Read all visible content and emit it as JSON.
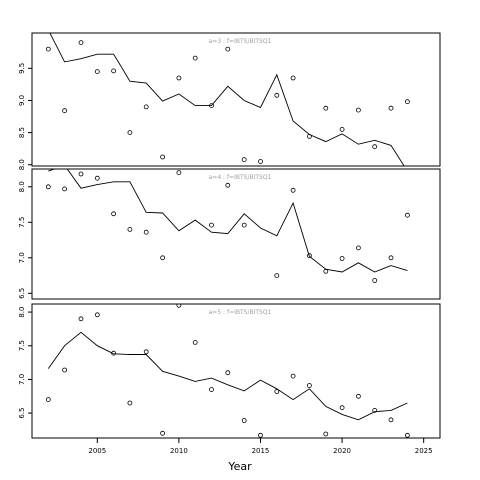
{
  "chart_data": {
    "type": "scatter",
    "xlabel": "Year",
    "x_ticks": [
      2005,
      2010,
      2015,
      2020,
      2025
    ],
    "x_range": [
      2001,
      2026
    ],
    "panels": [
      {
        "label": "a=3  :  f=IBTS/BITSQ1",
        "y_range": [
          7.98,
          10.05
        ],
        "y_ticks": [
          "8.0",
          "8.5",
          "9.0",
          "9.5"
        ],
        "points_x": [
          2002,
          2003,
          2004,
          2005,
          2006,
          2007,
          2008,
          2009,
          2010,
          2011,
          2012,
          2013,
          2014,
          2015,
          2016,
          2017,
          2018,
          2019,
          2020,
          2021,
          2022,
          2023,
          2024
        ],
        "points_y": [
          9.8,
          8.84,
          9.9,
          9.45,
          9.46,
          8.5,
          8.9,
          8.12,
          9.35,
          9.66,
          8.92,
          9.8,
          8.08,
          8.05,
          9.08,
          9.35,
          8.44,
          8.88,
          8.55,
          8.85,
          8.28,
          8.88,
          8.98
        ],
        "line_x": [
          2002,
          2003,
          2004,
          2005,
          2006,
          2007,
          2008,
          2009,
          2010,
          2011,
          2012,
          2013,
          2014,
          2015,
          2016,
          2017,
          2018,
          2019,
          2020,
          2021,
          2022,
          2023,
          2024
        ],
        "line_y": [
          10.1,
          9.6,
          9.65,
          9.72,
          9.72,
          9.3,
          9.27,
          8.99,
          9.1,
          8.92,
          8.92,
          9.22,
          9.0,
          8.89,
          9.4,
          8.68,
          8.47,
          8.36,
          8.48,
          8.32,
          8.38,
          8.3,
          7.9
        ]
      },
      {
        "label": "a=4  :  f=IBTS/BITSQ1",
        "y_range": [
          6.42,
          8.25
        ],
        "y_ticks": [
          "6.5",
          "7.0",
          "7.5",
          "8.0"
        ],
        "points_x": [
          2002,
          2003,
          2004,
          2005,
          2006,
          2007,
          2008,
          2009,
          2010,
          2011,
          2012,
          2013,
          2014,
          2015,
          2016,
          2017,
          2018,
          2019,
          2020,
          2021,
          2022,
          2023,
          2024
        ],
        "points_y": [
          8.0,
          7.97,
          8.18,
          8.12,
          7.62,
          7.4,
          7.36,
          7.0,
          8.2,
          8.3,
          7.46,
          8.02,
          7.46,
          6.38,
          6.75,
          7.95,
          7.03,
          6.81,
          6.99,
          7.14,
          6.68,
          7.0,
          7.6
        ],
        "line_x": [
          2002,
          2003,
          2004,
          2005,
          2006,
          2007,
          2008,
          2009,
          2010,
          2011,
          2012,
          2013,
          2014,
          2015,
          2016,
          2017,
          2018,
          2019,
          2020,
          2021,
          2022,
          2023,
          2024
        ],
        "line_y": [
          8.22,
          8.3,
          7.98,
          8.03,
          8.07,
          8.07,
          7.64,
          7.63,
          7.38,
          7.53,
          7.36,
          7.34,
          7.62,
          7.42,
          7.31,
          7.77,
          7.02,
          6.84,
          6.8,
          6.93,
          6.8,
          6.89,
          6.82
        ]
      },
      {
        "label": "a=5  :  f=IBTS/BITSQ1",
        "y_range": [
          6.13,
          8.12
        ],
        "y_ticks": [
          "6.5",
          "7.0",
          "7.5",
          "8.0"
        ],
        "points_x": [
          2002,
          2003,
          2004,
          2005,
          2006,
          2007,
          2008,
          2009,
          2010,
          2011,
          2012,
          2013,
          2014,
          2015,
          2016,
          2017,
          2018,
          2019,
          2020,
          2021,
          2022,
          2023,
          2024
        ],
        "points_y": [
          6.7,
          7.14,
          7.9,
          7.96,
          7.39,
          6.65,
          7.41,
          6.2,
          8.1,
          7.55,
          6.85,
          7.1,
          6.39,
          6.17,
          6.82,
          7.05,
          6.91,
          6.19,
          6.58,
          6.75,
          6.54,
          6.4,
          6.17
        ],
        "line_x": [
          2002,
          2003,
          2004,
          2005,
          2006,
          2007,
          2008,
          2009,
          2010,
          2011,
          2012,
          2013,
          2014,
          2015,
          2016,
          2017,
          2018,
          2019,
          2020,
          2021,
          2022,
          2023,
          2024
        ],
        "line_y": [
          7.16,
          7.5,
          7.7,
          7.5,
          7.38,
          7.37,
          7.37,
          7.12,
          7.05,
          6.97,
          7.02,
          6.92,
          6.83,
          6.99,
          6.86,
          6.7,
          6.86,
          6.6,
          6.48,
          6.4,
          6.52,
          6.54,
          6.65
        ]
      }
    ],
    "colors": {
      "axis": "#000000",
      "points": "#000000",
      "line": "#000000",
      "panel_label": "#a0a0a0",
      "background": "#ffffff"
    }
  }
}
